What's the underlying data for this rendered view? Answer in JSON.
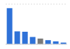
{
  "chart_data": {
    "type": "bar",
    "categories": [
      null,
      null,
      null,
      null,
      null,
      null,
      null,
      null
    ],
    "values": [
      90,
      32,
      31,
      18,
      14,
      10,
      7,
      4
    ],
    "colors": [
      "#2f72d8",
      "#2f72d8",
      "#2f72d8",
      "#2f72d8",
      "#7a7a7a",
      "#2f72d8",
      "#2f72d8",
      "#2f72d8"
    ],
    "ylim": [
      0,
      100
    ],
    "yticks": [
      0,
      25,
      50,
      75,
      100
    ],
    "grid": true,
    "tick_labels": false
  }
}
